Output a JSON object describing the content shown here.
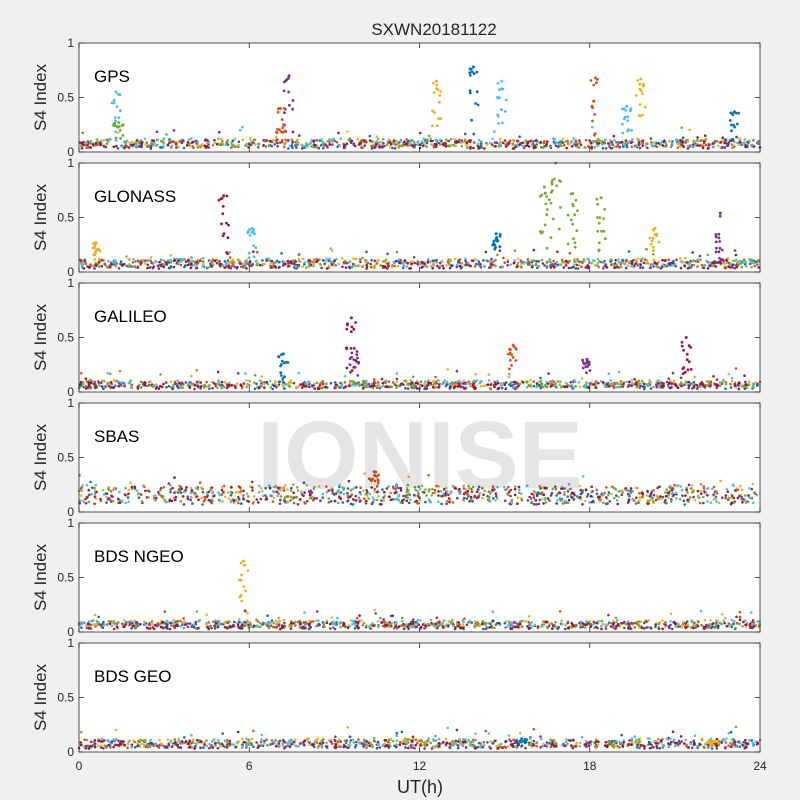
{
  "chart_data": {
    "type": "scatter",
    "title": "SXWN20181122",
    "xlabel": "UT(h)",
    "ylabel": "S4 Index",
    "xlim": [
      0,
      24
    ],
    "ylim": [
      0,
      1
    ],
    "xticks": [
      "0",
      "6",
      "12",
      "18",
      "24"
    ],
    "yticks": [
      "0",
      "0.5",
      "1"
    ],
    "watermark": "IONISE",
    "series_colors": [
      "#0072BD",
      "#D95319",
      "#EDB120",
      "#7E2F8E",
      "#77AC30",
      "#4DBEEE",
      "#A2142F"
    ],
    "panels": [
      {
        "name": "GPS",
        "baseline": 0.07,
        "spikes": [
          {
            "x": 1.3,
            "peak": 0.55,
            "color": "#4DBEEE"
          },
          {
            "x": 1.4,
            "peak": 0.27,
            "color": "#77AC30"
          },
          {
            "x": 7.4,
            "peak": 0.7,
            "color": "#7E2F8E"
          },
          {
            "x": 7.1,
            "peak": 0.4,
            "color": "#D95319"
          },
          {
            "x": 12.6,
            "peak": 0.65,
            "color": "#EDB120"
          },
          {
            "x": 13.9,
            "peak": 0.78,
            "color": "#0072BD"
          },
          {
            "x": 14.9,
            "peak": 0.65,
            "color": "#4DBEEE"
          },
          {
            "x": 18.2,
            "peak": 0.68,
            "color": "#D95319"
          },
          {
            "x": 19.8,
            "peak": 0.67,
            "color": "#EDB120"
          },
          {
            "x": 19.3,
            "peak": 0.42,
            "color": "#4DBEEE"
          },
          {
            "x": 23.1,
            "peak": 0.37,
            "color": "#0072BD"
          }
        ]
      },
      {
        "name": "GLONASS",
        "baseline": 0.07,
        "spikes": [
          {
            "x": 0.6,
            "peak": 0.27,
            "color": "#EDB120"
          },
          {
            "x": 5.1,
            "peak": 0.7,
            "color": "#A2142F"
          },
          {
            "x": 6.1,
            "peak": 0.4,
            "color": "#4DBEEE"
          },
          {
            "x": 14.7,
            "peak": 0.35,
            "color": "#0072BD"
          },
          {
            "x": 16.4,
            "peak": 0.78,
            "color": "#77AC30"
          },
          {
            "x": 16.8,
            "peak": 1.0,
            "color": "#77AC30"
          },
          {
            "x": 17.4,
            "peak": 0.72,
            "color": "#77AC30"
          },
          {
            "x": 18.4,
            "peak": 0.68,
            "color": "#77AC30"
          },
          {
            "x": 20.3,
            "peak": 0.4,
            "color": "#EDB120"
          },
          {
            "x": 22.6,
            "peak": 0.54,
            "color": "#7E2F8E"
          }
        ]
      },
      {
        "name": "GALILEO",
        "baseline": 0.06,
        "spikes": [
          {
            "x": 7.2,
            "peak": 0.35,
            "color": "#0072BD"
          },
          {
            "x": 9.6,
            "peak": 0.68,
            "color": "#A2142F"
          },
          {
            "x": 9.7,
            "peak": 0.4,
            "color": "#7E2F8E"
          },
          {
            "x": 15.3,
            "peak": 0.43,
            "color": "#D95319"
          },
          {
            "x": 17.9,
            "peak": 0.3,
            "color": "#7E2F8E"
          },
          {
            "x": 21.4,
            "peak": 0.5,
            "color": "#A2142F"
          }
        ]
      },
      {
        "name": "SBAS",
        "baseline": 0.15,
        "spikes": [
          {
            "x": 10.4,
            "peak": 0.37,
            "color": "#D95319"
          }
        ]
      },
      {
        "name": "BDS NGEO",
        "baseline": 0.06,
        "spikes": [
          {
            "x": 5.8,
            "peak": 0.65,
            "color": "#EDB120"
          }
        ]
      },
      {
        "name": "BDS GEO",
        "baseline": 0.07,
        "spikes": [
          {
            "x": 15.6,
            "peak": 0.12,
            "color": "#0072BD"
          },
          {
            "x": 22.3,
            "peak": 0.1,
            "color": "#EDB120"
          }
        ]
      }
    ]
  }
}
